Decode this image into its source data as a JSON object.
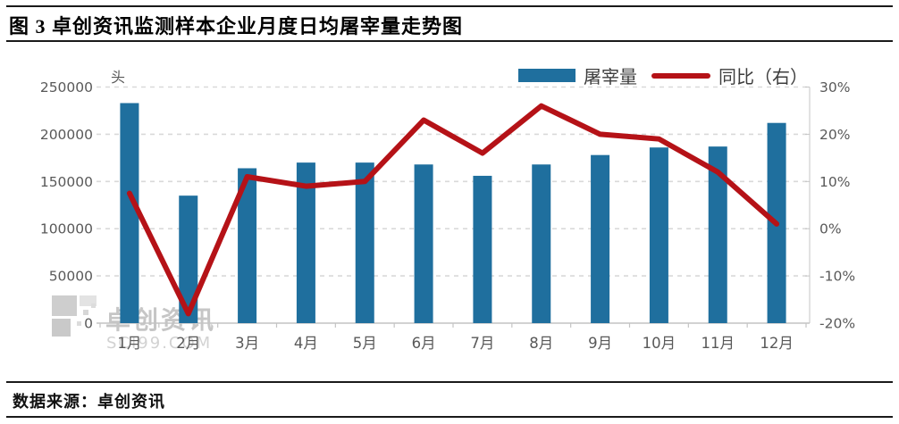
{
  "header": {
    "title": "图 3 卓创资讯监测样本企业月度日均屠宰量走势图"
  },
  "footer": {
    "source": "数据来源：卓创资讯"
  },
  "watermark": {
    "name": "卓创资讯",
    "site": "SCI99.COM"
  },
  "chart_data": {
    "type": "combo-bar-line",
    "title": "卓创资讯监测样本企业月度日均屠宰量走势图",
    "categories": [
      "1月",
      "2月",
      "3月",
      "4月",
      "5月",
      "6月",
      "7月",
      "8月",
      "9月",
      "10月",
      "11月",
      "12月"
    ],
    "series": [
      {
        "name": "屠宰量",
        "type": "bar",
        "axis": "left",
        "color": "#1f6f9e",
        "values": [
          233000,
          135000,
          164000,
          170000,
          170000,
          168000,
          156000,
          168000,
          178000,
          186000,
          187000,
          212000
        ]
      },
      {
        "name": "同比（右）",
        "type": "line",
        "axis": "right",
        "color": "#b51217",
        "values": [
          7.5,
          -18,
          11,
          9,
          10,
          23,
          16,
          26,
          20,
          19,
          12,
          1
        ]
      }
    ],
    "left_axis": {
      "unit": "头",
      "min": 0,
      "max": 250000,
      "step": 50000,
      "tick_labels": [
        "250000",
        "200000",
        "150000",
        "100000",
        "50000",
        "0"
      ]
    },
    "right_axis": {
      "min": -20,
      "max": 30,
      "step": 10,
      "tick_labels": [
        "30%",
        "20%",
        "10%",
        "0%",
        "-10%",
        "-20%"
      ]
    },
    "legend_position": "top-right",
    "grid": "horizontal-dashed",
    "colors": {
      "grid": "#d9d9d9",
      "axis_line": "#c4c4c4",
      "axis_text": "#595959",
      "watermark": "#c6c6c6"
    }
  }
}
